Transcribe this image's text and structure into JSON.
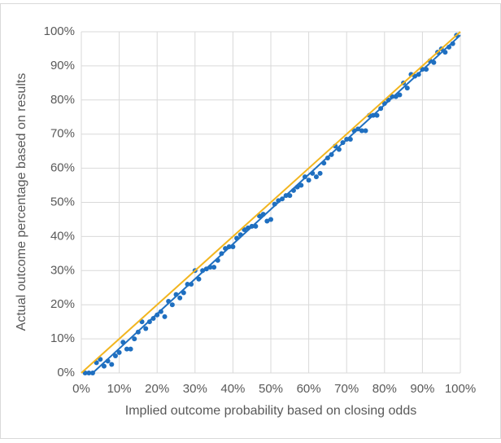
{
  "chart_data": {
    "type": "scatter",
    "x_label": "Implied outcome probability based on closing odds",
    "y_label": "Actual outcome percentage based on results",
    "xlim": [
      0,
      100
    ],
    "ylim": [
      0,
      100
    ],
    "xticks": [
      {
        "value": 0,
        "label": "0%"
      },
      {
        "value": 10,
        "label": "10%"
      },
      {
        "value": 20,
        "label": "20%"
      },
      {
        "value": 30,
        "label": "30%"
      },
      {
        "value": 40,
        "label": "40%"
      },
      {
        "value": 50,
        "label": "50%"
      },
      {
        "value": 60,
        "label": "60%"
      },
      {
        "value": 70,
        "label": "70%"
      },
      {
        "value": 80,
        "label": "80%"
      },
      {
        "value": 90,
        "label": "90%"
      },
      {
        "value": 100,
        "label": "100%"
      }
    ],
    "yticks": [
      {
        "value": 0,
        "label": "0%"
      },
      {
        "value": 10,
        "label": "10%"
      },
      {
        "value": 20,
        "label": "20%"
      },
      {
        "value": 30,
        "label": "30%"
      },
      {
        "value": 40,
        "label": "40%"
      },
      {
        "value": 50,
        "label": "50%"
      },
      {
        "value": 60,
        "label": "60%"
      },
      {
        "value": 70,
        "label": "70%"
      },
      {
        "value": 80,
        "label": "80%"
      },
      {
        "value": 90,
        "label": "90%"
      },
      {
        "value": 100,
        "label": "100%"
      }
    ],
    "grid": true,
    "series": [
      {
        "color": "#1f6fc0",
        "mode": "points",
        "x": [
          1,
          2,
          3,
          4,
          5,
          6,
          7,
          8,
          9,
          10,
          11,
          12,
          13,
          14,
          15,
          16,
          17,
          18,
          19,
          20,
          21,
          22,
          23,
          24,
          25,
          26,
          27,
          28,
          29,
          30,
          31,
          32,
          33,
          34,
          35,
          36,
          37,
          38,
          39,
          40,
          41,
          42,
          43,
          44,
          45,
          46,
          47,
          48,
          49,
          50,
          51,
          52,
          53,
          54,
          55,
          56,
          57,
          58,
          59,
          60,
          61,
          62,
          63,
          64,
          65,
          66,
          67,
          68,
          69,
          70,
          71,
          72,
          73,
          74,
          75,
          76,
          77,
          78,
          79,
          80,
          81,
          82,
          83,
          84,
          85,
          86,
          87,
          88,
          89,
          90,
          91,
          92,
          93,
          94,
          95,
          96,
          97,
          98,
          99
        ],
        "values": [
          0,
          0,
          0,
          3,
          4,
          2,
          3.5,
          2.5,
          5,
          6,
          9,
          7,
          7,
          10,
          12,
          15,
          13,
          15,
          16,
          17,
          18,
          16.5,
          21,
          20,
          23,
          22,
          23.5,
          26,
          26,
          30,
          27.5,
          30,
          30.5,
          31,
          31,
          33,
          35,
          36.5,
          37,
          37,
          39.5,
          40.5,
          42,
          42.5,
          43,
          43,
          46,
          46.5,
          44.5,
          45,
          49.5,
          50.5,
          51,
          52,
          52,
          53.5,
          54.5,
          55,
          57.5,
          56.5,
          58.5,
          57.5,
          58.5,
          61.5,
          63,
          64,
          66.5,
          65.5,
          67.5,
          68.5,
          68.5,
          71,
          71.5,
          71,
          71,
          75.5,
          75.5,
          75.5,
          77.5,
          79,
          80,
          81,
          81,
          81.5,
          85,
          83.5,
          87.5,
          87,
          87.5,
          89,
          89,
          91.5,
          91,
          94,
          95,
          94,
          95.5,
          96.5,
          99
        ]
      },
      {
        "color": "#1f6fc0",
        "mode": "line",
        "x": [
          3,
          100
        ],
        "values": [
          0,
          99
        ]
      },
      {
        "color": "#f2b51f",
        "mode": "line",
        "x": [
          0,
          100
        ],
        "values": [
          0,
          100
        ]
      }
    ]
  }
}
